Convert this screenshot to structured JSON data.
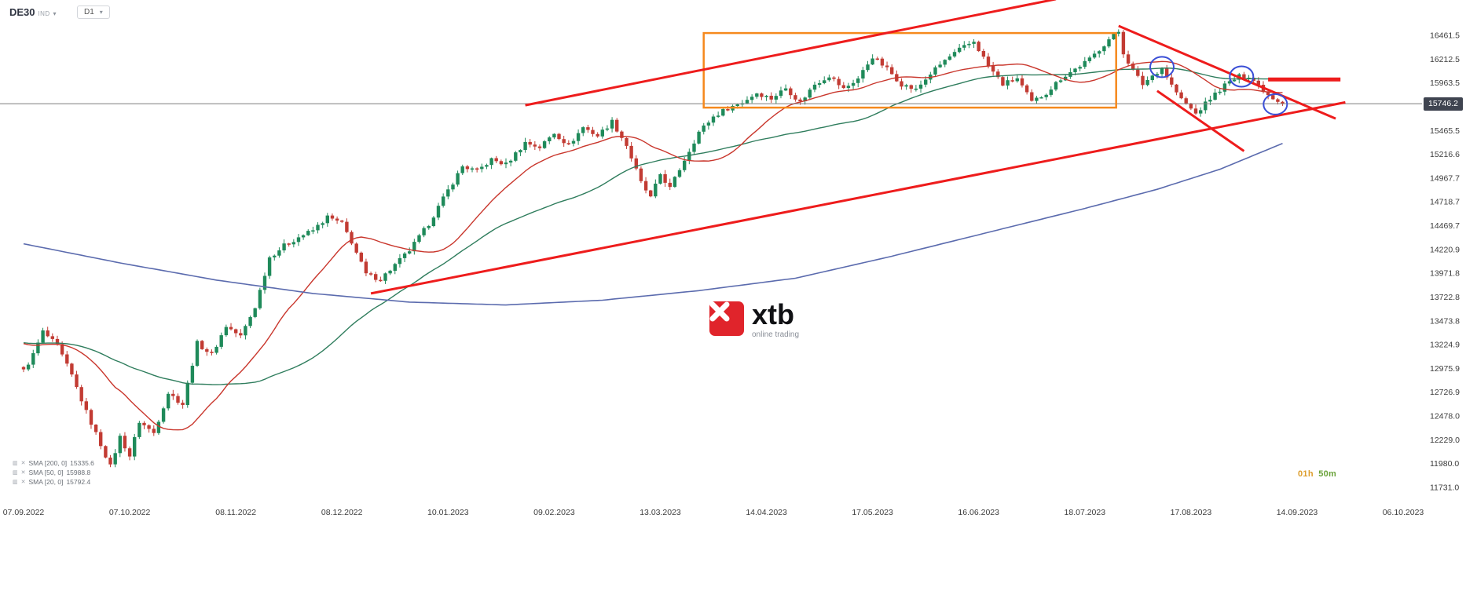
{
  "header": {
    "symbol": "DE30",
    "symbol_type": "IND",
    "timeframe": "D1"
  },
  "watermark": {
    "logo_text": "xtb",
    "tagline": "online trading"
  },
  "legend": {
    "items": [
      {
        "label": "SMA [200, 0]",
        "value": "15335.6"
      },
      {
        "label": "SMA [50, 0]",
        "value": "15988.8"
      },
      {
        "label": "SMA [20, 0]",
        "value": "15792.4"
      }
    ]
  },
  "countdown": {
    "hours": "01h",
    "minutes": "50m"
  },
  "price_badge": "15746.2",
  "colors": {
    "up_candle": "#1f8a5a",
    "down_candle": "#c23b33",
    "sma20": "#c9362c",
    "sma50": "#2f7d5d",
    "sma200": "#5b6bae",
    "trendline": "#ee1c1c",
    "box": "#f5891d",
    "circle": "#3a4ed6",
    "badge_bg": "#3f4450"
  },
  "chart_data": {
    "type": "candlestick",
    "symbol": "DE30",
    "timeframe": "D1",
    "current_price": 15746.2,
    "ylim": [
      11731.0,
      16461.5
    ],
    "grid": "off",
    "y_ticks": [
      "16461.5",
      "16212.5",
      "15963.5",
      "15465.5",
      "15216.6",
      "14967.7",
      "14718.7",
      "14469.7",
      "14220.9",
      "13971.8",
      "13722.8",
      "13473.8",
      "13224.9",
      "12975.9",
      "12726.9",
      "12478.0",
      "12229.0",
      "11980.0",
      "11731.0"
    ],
    "x_ticks": [
      {
        "day": 0,
        "label": "07.09.2022"
      },
      {
        "day": 22,
        "label": "07.10.2022"
      },
      {
        "day": 44,
        "label": "08.11.2022"
      },
      {
        "day": 66,
        "label": "08.12.2022"
      },
      {
        "day": 88,
        "label": "10.01.2023"
      },
      {
        "day": 110,
        "label": "09.02.2023"
      },
      {
        "day": 132,
        "label": "13.03.2023"
      },
      {
        "day": 154,
        "label": "14.04.2023"
      },
      {
        "day": 176,
        "label": "17.05.2023"
      },
      {
        "day": 198,
        "label": "16.06.2023"
      },
      {
        "day": 220,
        "label": "18.07.2023"
      },
      {
        "day": 242,
        "label": "17.08.2023"
      },
      {
        "day": 264,
        "label": "14.09.2023"
      },
      {
        "day": 286,
        "label": "06.10.2023"
      }
    ],
    "days_total": 261,
    "axis_day_max": 286,
    "close_anchors": [
      [
        0,
        12950
      ],
      [
        2,
        13120
      ],
      [
        4,
        13360
      ],
      [
        7,
        13210
      ],
      [
        10,
        12900
      ],
      [
        13,
        12520
      ],
      [
        16,
        12180
      ],
      [
        18,
        11950
      ],
      [
        20,
        12260
      ],
      [
        22,
        12060
      ],
      [
        24,
        12420
      ],
      [
        27,
        12300
      ],
      [
        30,
        12720
      ],
      [
        33,
        12600
      ],
      [
        36,
        13240
      ],
      [
        39,
        13120
      ],
      [
        42,
        13420
      ],
      [
        45,
        13310
      ],
      [
        48,
        13620
      ],
      [
        51,
        14140
      ],
      [
        54,
        14260
      ],
      [
        57,
        14350
      ],
      [
        60,
        14420
      ],
      [
        63,
        14560
      ],
      [
        66,
        14490
      ],
      [
        68,
        14300
      ],
      [
        71,
        13960
      ],
      [
        74,
        13910
      ],
      [
        77,
        14060
      ],
      [
        80,
        14210
      ],
      [
        84,
        14490
      ],
      [
        88,
        14840
      ],
      [
        91,
        15090
      ],
      [
        94,
        15040
      ],
      [
        97,
        15160
      ],
      [
        100,
        15110
      ],
      [
        104,
        15340
      ],
      [
        107,
        15290
      ],
      [
        110,
        15440
      ],
      [
        113,
        15310
      ],
      [
        116,
        15500
      ],
      [
        119,
        15410
      ],
      [
        122,
        15560
      ],
      [
        125,
        15310
      ],
      [
        128,
        14920
      ],
      [
        130,
        14760
      ],
      [
        132,
        15010
      ],
      [
        134,
        14860
      ],
      [
        137,
        15160
      ],
      [
        140,
        15450
      ],
      [
        143,
        15610
      ],
      [
        146,
        15700
      ],
      [
        149,
        15760
      ],
      [
        152,
        15860
      ],
      [
        155,
        15800
      ],
      [
        158,
        15910
      ],
      [
        161,
        15760
      ],
      [
        164,
        15950
      ],
      [
        167,
        16040
      ],
      [
        170,
        15900
      ],
      [
        173,
        16010
      ],
      [
        176,
        16240
      ],
      [
        179,
        16110
      ],
      [
        182,
        15950
      ],
      [
        185,
        15890
      ],
      [
        188,
        16060
      ],
      [
        191,
        16200
      ],
      [
        194,
        16310
      ],
      [
        197,
        16400
      ],
      [
        200,
        16140
      ],
      [
        203,
        15950
      ],
      [
        206,
        16010
      ],
      [
        209,
        15760
      ],
      [
        212,
        15860
      ],
      [
        215,
        16010
      ],
      [
        218,
        16110
      ],
      [
        221,
        16210
      ],
      [
        225,
        16420
      ],
      [
        227,
        16500
      ],
      [
        228,
        16280
      ],
      [
        230,
        16090
      ],
      [
        232,
        15950
      ],
      [
        234,
        16040
      ],
      [
        236,
        16120
      ],
      [
        238,
        15940
      ],
      [
        240,
        15790
      ],
      [
        243,
        15640
      ],
      [
        246,
        15800
      ],
      [
        249,
        15940
      ],
      [
        252,
        16030
      ],
      [
        254,
        16040
      ],
      [
        256,
        15940
      ],
      [
        258,
        15840
      ],
      [
        260,
        15780
      ],
      [
        261,
        15746
      ]
    ],
    "sma200_points": [
      [
        0,
        14280
      ],
      [
        20,
        14080
      ],
      [
        40,
        13900
      ],
      [
        60,
        13760
      ],
      [
        80,
        13670
      ],
      [
        100,
        13640
      ],
      [
        120,
        13690
      ],
      [
        140,
        13790
      ],
      [
        160,
        13920
      ],
      [
        180,
        14150
      ],
      [
        200,
        14400
      ],
      [
        220,
        14650
      ],
      [
        235,
        14850
      ],
      [
        248,
        15060
      ],
      [
        261,
        15330
      ]
    ],
    "overlays": {
      "channel_lower": {
        "from": [
          72,
          13760
        ],
        "to": [
          274,
          15760
        ]
      },
      "channel_upper": {
        "from": [
          104,
          15730
        ],
        "to": [
          214,
          16840
        ]
      },
      "wedge_upper": {
        "from": [
          227,
          16560
        ],
        "to": [
          272,
          15590
        ]
      },
      "wedge_lower": {
        "from": [
          235,
          15880
        ],
        "to": [
          253,
          15250
        ]
      },
      "resistance": {
        "from": [
          258,
          16000
        ],
        "to": [
          273,
          16000
        ]
      },
      "consolidation_box": {
        "day_from": 141,
        "day_to": 226.5,
        "price_top": 16485,
        "price_bottom": 15705
      },
      "circles": [
        {
          "day": 236,
          "price": 16130
        },
        {
          "day": 252.5,
          "price": 16030
        },
        {
          "day": 259.5,
          "price": 15740
        }
      ]
    }
  }
}
